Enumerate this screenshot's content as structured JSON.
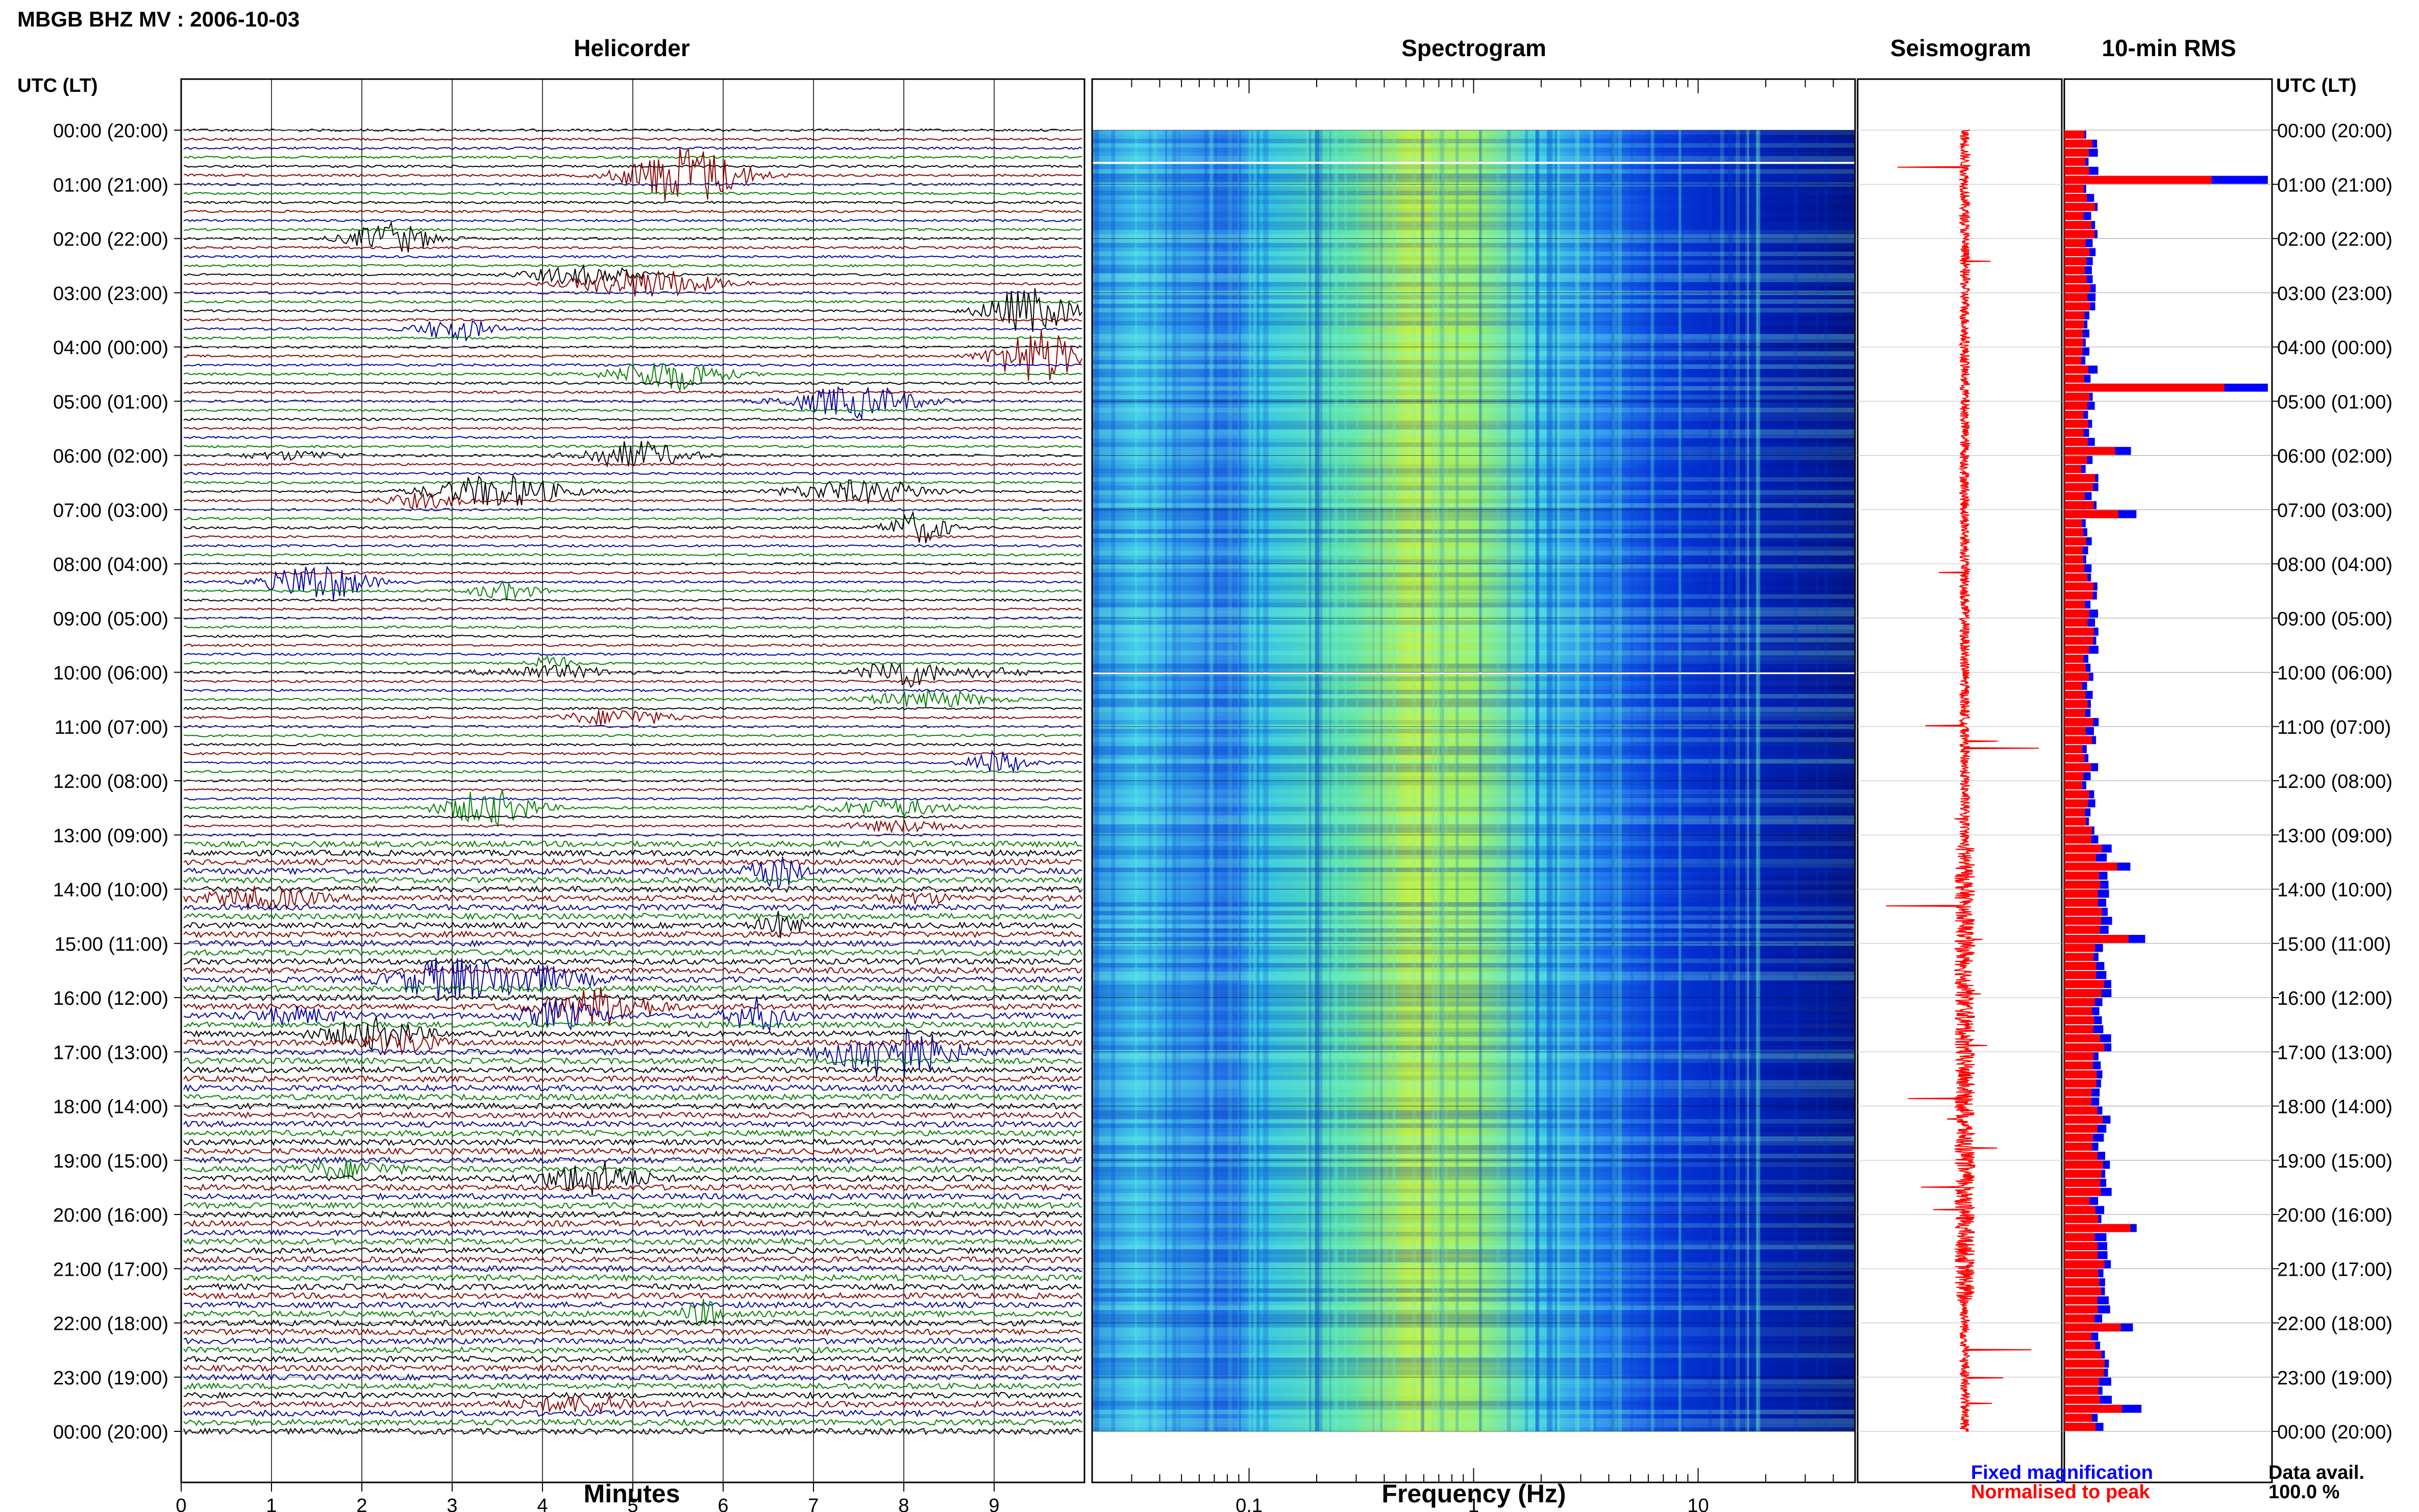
{
  "title": "MBGB BHZ MV : 2006-10-03",
  "panels": {
    "helicorder": "Helicorder",
    "spectrogram": "Spectrogram",
    "seismogram": "Seismogram",
    "rms": "10-min RMS"
  },
  "time_axis_label": "UTC (LT)",
  "chart_data": [
    {
      "type": "line",
      "name": "helicorder",
      "title": "Helicorder",
      "xlabel": "Minutes",
      "ylabel": "UTC (LT)",
      "xlim": [
        0,
        10
      ],
      "x_ticks": [
        "0",
        "1",
        "2",
        "3",
        "4",
        "5",
        "6",
        "7",
        "8",
        "9"
      ],
      "y_ticks": [
        "00:00 (20:00)",
        "01:00 (21:00)",
        "02:00 (22:00)",
        "03:00 (23:00)",
        "04:00 (00:00)",
        "05:00 (01:00)",
        "06:00 (02:00)",
        "07:00 (03:00)",
        "08:00 (04:00)",
        "09:00 (05:00)",
        "10:00 (06:00)",
        "11:00 (07:00)",
        "12:00 (08:00)",
        "13:00 (09:00)",
        "14:00 (10:00)",
        "15:00 (11:00)",
        "16:00 (12:00)",
        "17:00 (13:00)",
        "18:00 (14:00)",
        "19:00 (15:00)",
        "20:00 (16:00)",
        "21:00 (17:00)",
        "22:00 (18:00)",
        "23:00 (19:00)",
        "00:00 (20:00)"
      ],
      "traces_per_hour": 6,
      "trace_colors": [
        "#000000",
        "#8b0000",
        "#0000a0",
        "#008000"
      ],
      "grid": true
    },
    {
      "type": "heatmap",
      "name": "spectrogram",
      "title": "Spectrogram",
      "xlabel": "Frequency (Hz)",
      "x_scale": "log",
      "xlim": [
        0.02,
        50
      ],
      "x_ticks": [
        "0.1",
        "1",
        "10"
      ],
      "colormap": [
        "#000080",
        "#0000ff",
        "#00a0ff",
        "#40e0d0",
        "#c0ff40",
        "#ffff40"
      ]
    },
    {
      "type": "line",
      "name": "seismogram",
      "title": "Seismogram",
      "color": "#ff0000"
    },
    {
      "type": "bar",
      "name": "rms",
      "title": "10-min RMS",
      "orientation": "horizontal",
      "series": [
        {
          "name": "Fixed magnification",
          "color": "#0000ff"
        },
        {
          "name": "Normalised to peak",
          "color": "#ff0000"
        }
      ]
    }
  ],
  "legend": {
    "fixed": "Fixed magnification",
    "normalised": "Normalised to peak"
  },
  "data_avail": {
    "label": "Data avail.",
    "value": "100.0 %"
  }
}
